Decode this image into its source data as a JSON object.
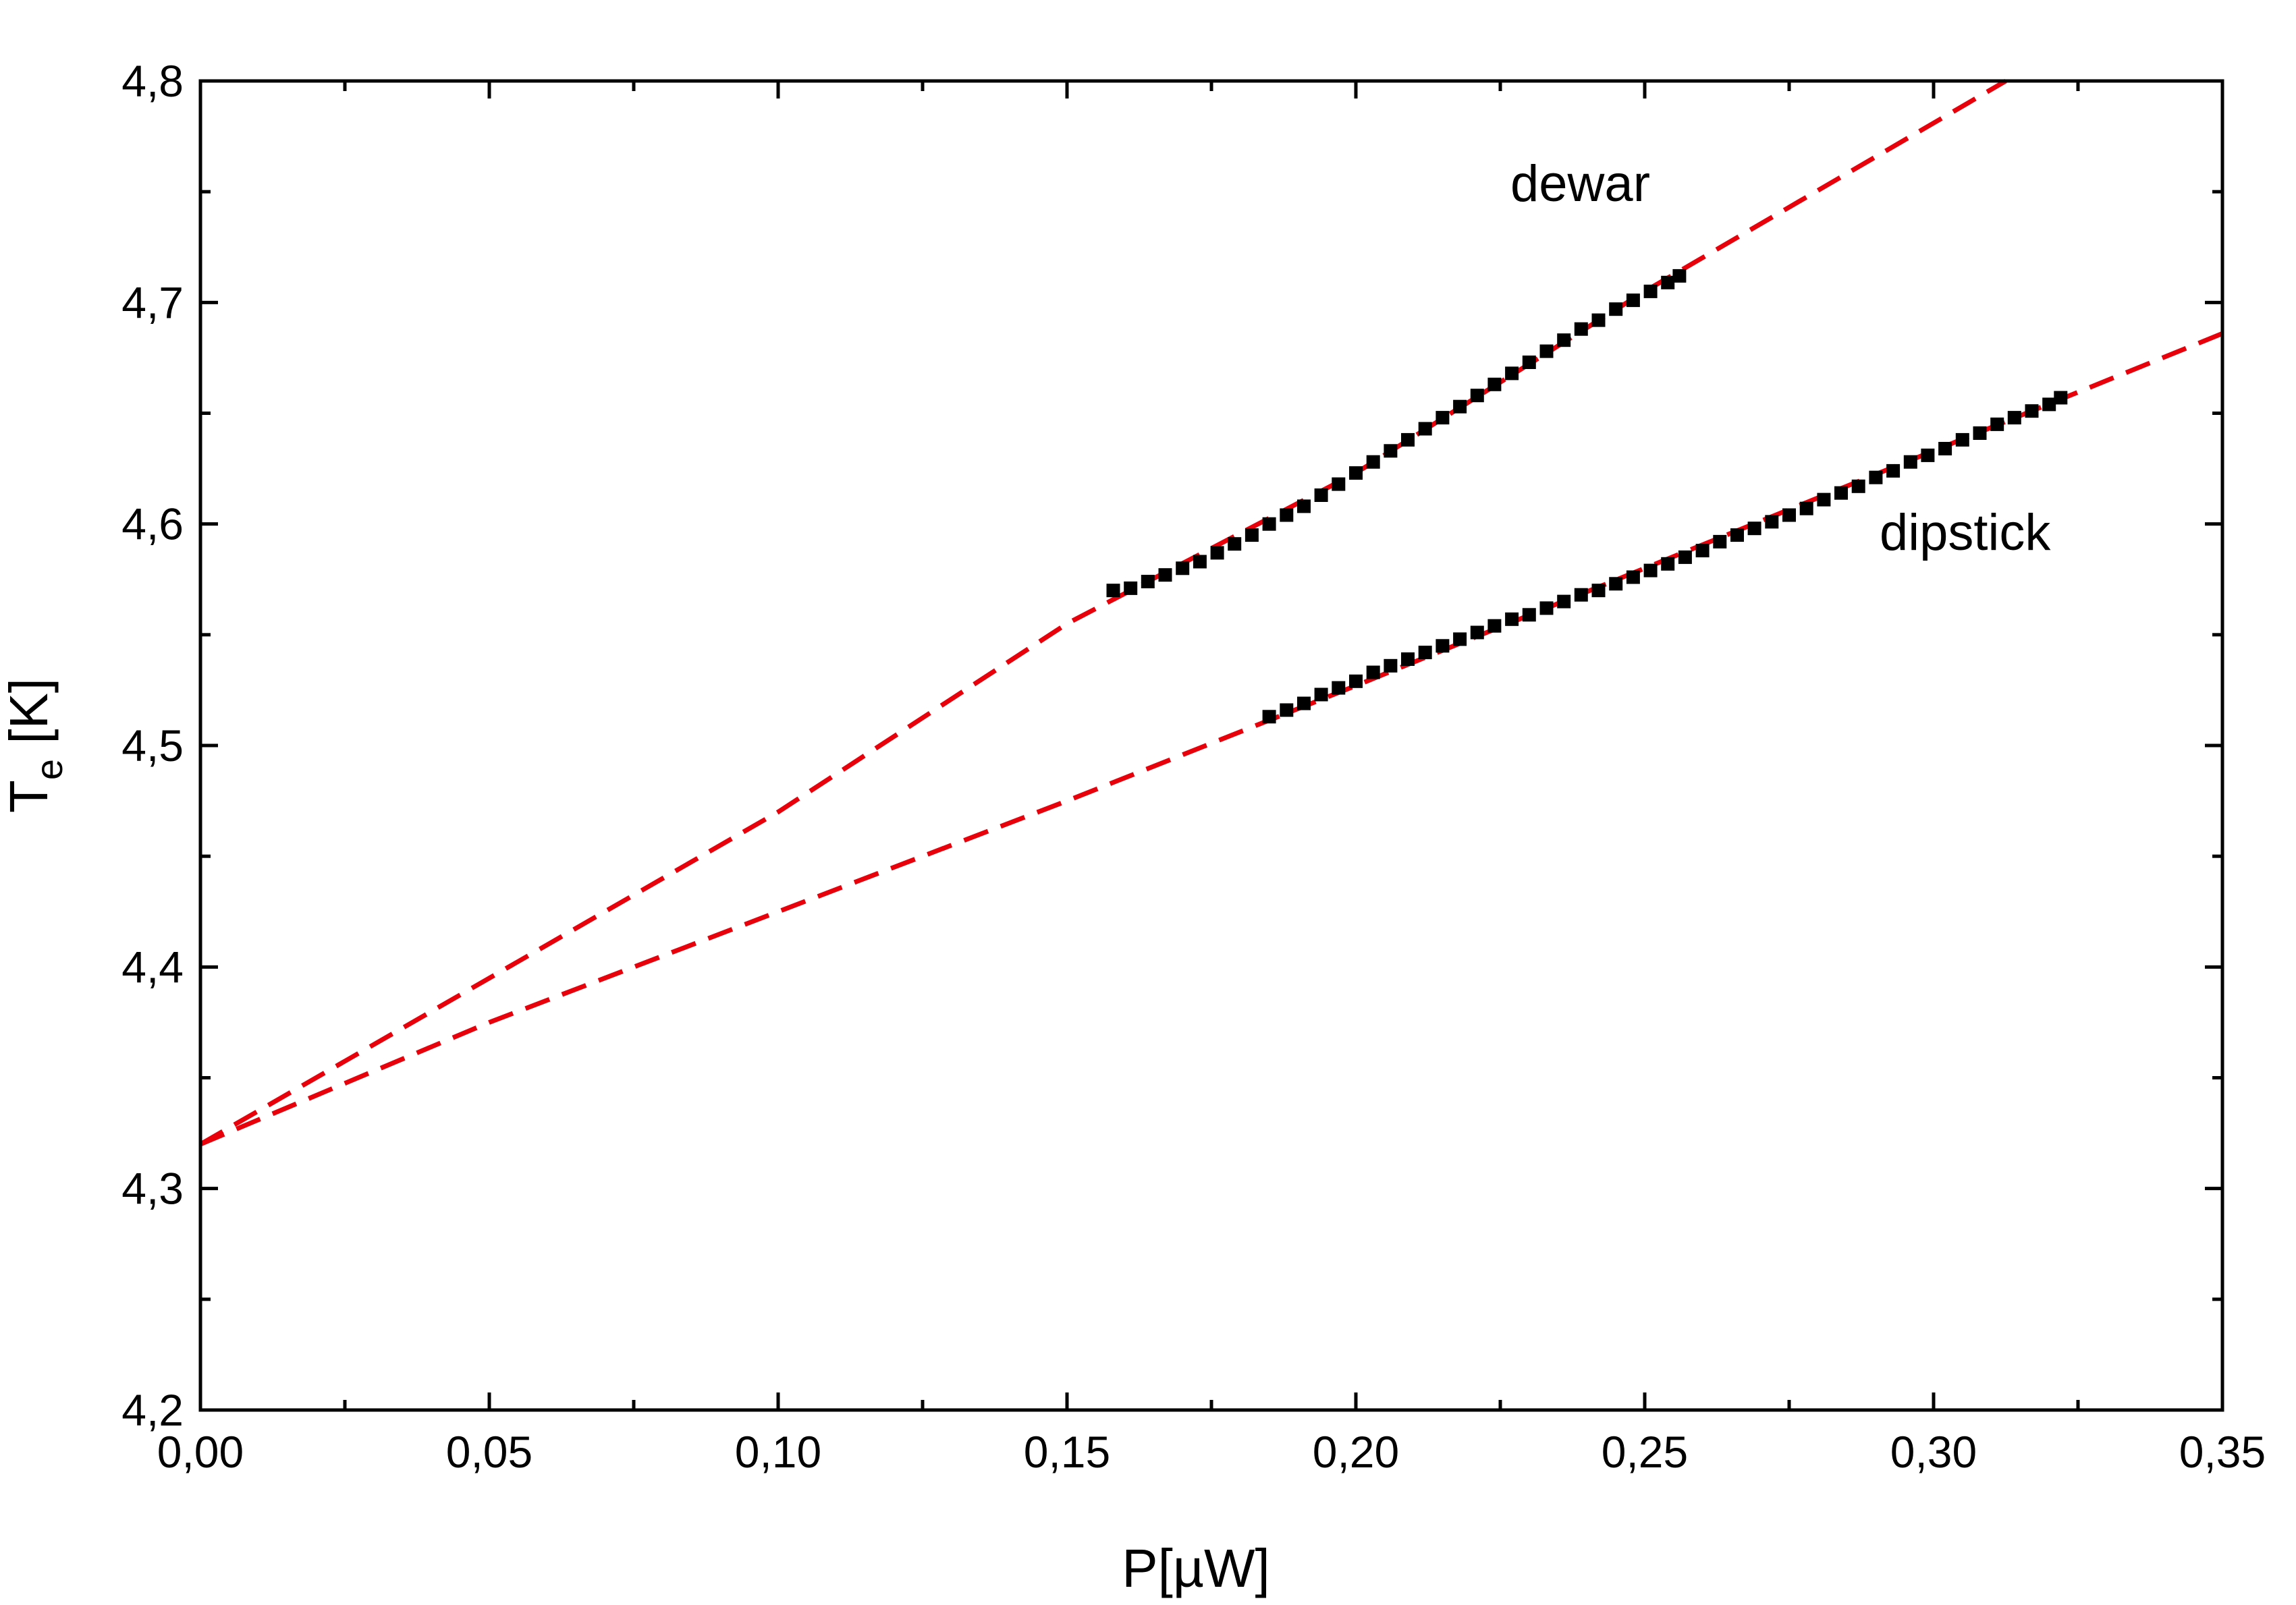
{
  "chart_data": {
    "type": "scatter",
    "xlabel": "P[µW]",
    "ylabel": {
      "main": "T",
      "subscript": "e",
      "unit": " [K]"
    },
    "xlim": [
      0.0,
      0.35
    ],
    "ylim": [
      4.2,
      4.8
    ],
    "x_ticks": [
      0.0,
      0.05,
      0.1,
      0.15,
      0.2,
      0.25,
      0.3,
      0.35
    ],
    "x_tick_labels": [
      "0,00",
      "0,05",
      "0,10",
      "0,15",
      "0,20",
      "0,25",
      "0,30",
      "0,35"
    ],
    "y_ticks": [
      4.2,
      4.3,
      4.4,
      4.5,
      4.6,
      4.7,
      4.8
    ],
    "y_tick_labels": [
      "4,2",
      "4,3",
      "4,4",
      "4,5",
      "4,6",
      "4,7",
      "4,8"
    ],
    "grid": false,
    "legend": "none",
    "colors": {
      "data_points": "#000000",
      "fit_lines": "#e8000b"
    },
    "series": [
      {
        "name": "dewar",
        "marker": "square",
        "points": [
          [
            0.158,
            4.57
          ],
          [
            0.161,
            4.571
          ],
          [
            0.164,
            4.574
          ],
          [
            0.167,
            4.577
          ],
          [
            0.17,
            4.58
          ],
          [
            0.173,
            4.583
          ],
          [
            0.176,
            4.587
          ],
          [
            0.179,
            4.591
          ],
          [
            0.182,
            4.595
          ],
          [
            0.185,
            4.6
          ],
          [
            0.188,
            4.604
          ],
          [
            0.191,
            4.608
          ],
          [
            0.194,
            4.613
          ],
          [
            0.197,
            4.618
          ],
          [
            0.2,
            4.623
          ],
          [
            0.203,
            4.628
          ],
          [
            0.206,
            4.633
          ],
          [
            0.209,
            4.638
          ],
          [
            0.212,
            4.643
          ],
          [
            0.215,
            4.648
          ],
          [
            0.218,
            4.653
          ],
          [
            0.221,
            4.658
          ],
          [
            0.224,
            4.663
          ],
          [
            0.227,
            4.668
          ],
          [
            0.23,
            4.673
          ],
          [
            0.233,
            4.678
          ],
          [
            0.236,
            4.683
          ],
          [
            0.239,
            4.688
          ],
          [
            0.242,
            4.692
          ],
          [
            0.245,
            4.697
          ],
          [
            0.248,
            4.701
          ],
          [
            0.251,
            4.705
          ],
          [
            0.254,
            4.709
          ],
          [
            0.256,
            4.712
          ]
        ]
      },
      {
        "name": "dipstick",
        "marker": "square",
        "points": [
          [
            0.185,
            4.513
          ],
          [
            0.188,
            4.516
          ],
          [
            0.191,
            4.519
          ],
          [
            0.194,
            4.523
          ],
          [
            0.197,
            4.526
          ],
          [
            0.2,
            4.529
          ],
          [
            0.203,
            4.533
          ],
          [
            0.206,
            4.536
          ],
          [
            0.209,
            4.539
          ],
          [
            0.212,
            4.542
          ],
          [
            0.215,
            4.545
          ],
          [
            0.218,
            4.548
          ],
          [
            0.221,
            4.551
          ],
          [
            0.224,
            4.554
          ],
          [
            0.227,
            4.557
          ],
          [
            0.23,
            4.559
          ],
          [
            0.233,
            4.562
          ],
          [
            0.236,
            4.565
          ],
          [
            0.239,
            4.568
          ],
          [
            0.242,
            4.57
          ],
          [
            0.245,
            4.573
          ],
          [
            0.248,
            4.576
          ],
          [
            0.251,
            4.579
          ],
          [
            0.254,
            4.582
          ],
          [
            0.257,
            4.585
          ],
          [
            0.26,
            4.588
          ],
          [
            0.263,
            4.592
          ],
          [
            0.266,
            4.595
          ],
          [
            0.269,
            4.598
          ],
          [
            0.272,
            4.601
          ],
          [
            0.275,
            4.604
          ],
          [
            0.278,
            4.607
          ],
          [
            0.281,
            4.611
          ],
          [
            0.284,
            4.614
          ],
          [
            0.287,
            4.617
          ],
          [
            0.29,
            4.621
          ],
          [
            0.293,
            4.624
          ],
          [
            0.296,
            4.628
          ],
          [
            0.299,
            4.631
          ],
          [
            0.302,
            4.634
          ],
          [
            0.305,
            4.638
          ],
          [
            0.308,
            4.641
          ],
          [
            0.311,
            4.645
          ],
          [
            0.314,
            4.648
          ],
          [
            0.317,
            4.651
          ],
          [
            0.32,
            4.654
          ],
          [
            0.322,
            4.657
          ]
        ]
      }
    ],
    "fits": [
      {
        "for": "dewar",
        "style": "dashed",
        "points": [
          [
            0.0,
            4.32
          ],
          [
            0.05,
            4.395
          ],
          [
            0.1,
            4.47
          ],
          [
            0.15,
            4.555
          ],
          [
            0.2,
            4.623
          ],
          [
            0.25,
            4.705
          ],
          [
            0.3125,
            4.8
          ]
        ]
      },
      {
        "for": "dipstick",
        "style": "dashed",
        "points": [
          [
            0.0,
            4.32
          ],
          [
            0.05,
            4.375
          ],
          [
            0.1,
            4.425
          ],
          [
            0.15,
            4.475
          ],
          [
            0.2,
            4.527
          ],
          [
            0.25,
            4.58
          ],
          [
            0.3,
            4.633
          ],
          [
            0.35,
            4.686
          ]
        ]
      }
    ],
    "annotations": [
      "dewar",
      "dipstick"
    ]
  }
}
